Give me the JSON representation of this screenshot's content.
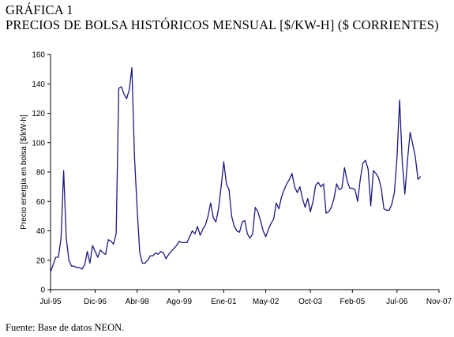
{
  "header": {
    "line1": "GRÁFICA 1",
    "line2": "PRECIOS DE BOLSA HISTÓRICOS MENSUAL [$/KW-H] ($ CORRIENTES)"
  },
  "footer": {
    "source": "Fuente: Base de datos NEON."
  },
  "colors": {
    "series": "#1a1a80",
    "axis": "#000000"
  },
  "chart_data": {
    "type": "line",
    "title": "PRECIOS DE BOLSA HISTÓRICOS MENSUAL [$/KW-H] ($ CORRIENTES)",
    "ylabel": "Precio energía en bolsa [$/kW-h]",
    "xlabel": "",
    "ylim": [
      0,
      160
    ],
    "yticks": [
      0,
      20,
      40,
      60,
      80,
      100,
      120,
      140,
      160
    ],
    "x_range": [
      "1995-07",
      "2007-11"
    ],
    "xticks": [
      {
        "label": "Jul-95",
        "date": "1995-07"
      },
      {
        "label": "Dic-96",
        "date": "1996-12"
      },
      {
        "label": "Abr-98",
        "date": "1998-04"
      },
      {
        "label": "Ago-99",
        "date": "1999-08"
      },
      {
        "label": "Ene-01",
        "date": "2001-01"
      },
      {
        "label": "May-02",
        "date": "2002-05"
      },
      {
        "label": "Oct-03",
        "date": "2003-10"
      },
      {
        "label": "Feb-05",
        "date": "2005-02"
      },
      {
        "label": "Jul-06",
        "date": "2006-07"
      },
      {
        "label": "Nov-07",
        "date": "2007-11"
      }
    ],
    "grid": false,
    "legend": "none",
    "series": [
      {
        "points": [
          [
            "1995-07",
            12
          ],
          [
            "1995-08",
            17
          ],
          [
            "1995-09",
            22
          ],
          [
            "1995-10",
            22
          ],
          [
            "1995-11",
            35
          ],
          [
            "1995-12",
            81
          ],
          [
            "1996-01",
            35
          ],
          [
            "1996-02",
            20
          ],
          [
            "1996-03",
            16
          ],
          [
            "1996-04",
            16
          ],
          [
            "1996-05",
            15
          ],
          [
            "1996-06",
            15
          ],
          [
            "1996-07",
            14
          ],
          [
            "1996-08",
            17
          ],
          [
            "1996-09",
            26
          ],
          [
            "1996-10",
            18
          ],
          [
            "1996-11",
            30
          ],
          [
            "1996-12",
            26
          ],
          [
            "1997-01",
            22
          ],
          [
            "1997-02",
            27
          ],
          [
            "1997-03",
            25
          ],
          [
            "1997-04",
            24
          ],
          [
            "1997-05",
            34
          ],
          [
            "1997-06",
            33
          ],
          [
            "1997-07",
            31
          ],
          [
            "1997-08",
            38
          ],
          [
            "1997-09",
            137
          ],
          [
            "1997-10",
            138
          ],
          [
            "1997-11",
            133
          ],
          [
            "1997-12",
            130
          ],
          [
            "1998-01",
            136
          ],
          [
            "1998-02",
            151
          ],
          [
            "1998-03",
            90
          ],
          [
            "1998-04",
            55
          ],
          [
            "1998-05",
            25
          ],
          [
            "1998-06",
            18
          ],
          [
            "1998-07",
            18
          ],
          [
            "1998-08",
            20
          ],
          [
            "1998-09",
            23
          ],
          [
            "1998-10",
            23
          ],
          [
            "1998-11",
            25
          ],
          [
            "1998-12",
            24
          ],
          [
            "1999-01",
            26
          ],
          [
            "1999-02",
            25
          ],
          [
            "1999-03",
            21
          ],
          [
            "1999-04",
            24
          ],
          [
            "1999-05",
            26
          ],
          [
            "1999-06",
            28
          ],
          [
            "1999-07",
            30
          ],
          [
            "1999-08",
            33
          ],
          [
            "1999-09",
            32
          ],
          [
            "1999-10",
            32
          ],
          [
            "1999-11",
            32
          ],
          [
            "1999-12",
            36
          ],
          [
            "2000-01",
            40
          ],
          [
            "2000-02",
            38
          ],
          [
            "2000-03",
            43
          ],
          [
            "2000-04",
            37
          ],
          [
            "2000-05",
            41
          ],
          [
            "2000-06",
            44
          ],
          [
            "2000-07",
            50
          ],
          [
            "2000-08",
            59
          ],
          [
            "2000-09",
            49
          ],
          [
            "2000-10",
            46
          ],
          [
            "2000-11",
            55
          ],
          [
            "2000-12",
            70
          ],
          [
            "2001-01",
            87
          ],
          [
            "2001-02",
            72
          ],
          [
            "2001-03",
            68
          ],
          [
            "2001-04",
            50
          ],
          [
            "2001-05",
            43
          ],
          [
            "2001-06",
            40
          ],
          [
            "2001-07",
            39
          ],
          [
            "2001-08",
            46
          ],
          [
            "2001-09",
            47
          ],
          [
            "2001-10",
            38
          ],
          [
            "2001-11",
            35
          ],
          [
            "2001-12",
            38
          ],
          [
            "2002-01",
            56
          ],
          [
            "2002-02",
            53
          ],
          [
            "2002-03",
            47
          ],
          [
            "2002-04",
            40
          ],
          [
            "2002-05",
            36
          ],
          [
            "2002-06",
            41
          ],
          [
            "2002-07",
            45
          ],
          [
            "2002-08",
            48
          ],
          [
            "2002-09",
            59
          ],
          [
            "2002-10",
            55
          ],
          [
            "2002-11",
            63
          ],
          [
            "2002-12",
            68
          ],
          [
            "2003-01",
            72
          ],
          [
            "2003-02",
            75
          ],
          [
            "2003-03",
            79
          ],
          [
            "2003-04",
            70
          ],
          [
            "2003-05",
            66
          ],
          [
            "2003-06",
            70
          ],
          [
            "2003-07",
            62
          ],
          [
            "2003-08",
            56
          ],
          [
            "2003-09",
            62
          ],
          [
            "2003-10",
            53
          ],
          [
            "2003-11",
            60
          ],
          [
            "2003-12",
            71
          ],
          [
            "2004-01",
            73
          ],
          [
            "2004-02",
            70
          ],
          [
            "2004-03",
            72
          ],
          [
            "2004-04",
            52
          ],
          [
            "2004-05",
            53
          ],
          [
            "2004-06",
            56
          ],
          [
            "2004-07",
            62
          ],
          [
            "2004-08",
            72
          ],
          [
            "2004-09",
            68
          ],
          [
            "2004-10",
            69
          ],
          [
            "2004-11",
            83
          ],
          [
            "2004-12",
            74
          ],
          [
            "2005-01",
            69
          ],
          [
            "2005-02",
            69
          ],
          [
            "2005-03",
            68
          ],
          [
            "2005-04",
            60
          ],
          [
            "2005-05",
            75
          ],
          [
            "2005-06",
            86
          ],
          [
            "2005-07",
            88
          ],
          [
            "2005-08",
            82
          ],
          [
            "2005-09",
            57
          ],
          [
            "2005-10",
            81
          ],
          [
            "2005-11",
            79
          ],
          [
            "2005-12",
            76
          ],
          [
            "2006-01",
            69
          ],
          [
            "2006-02",
            55
          ],
          [
            "2006-03",
            54
          ],
          [
            "2006-04",
            54
          ],
          [
            "2006-05",
            58
          ],
          [
            "2006-06",
            66
          ],
          [
            "2006-07",
            90
          ],
          [
            "2006-08",
            129
          ],
          [
            "2006-09",
            87
          ],
          [
            "2006-10",
            65
          ],
          [
            "2006-11",
            88
          ],
          [
            "2006-12",
            107
          ],
          [
            "2007-01",
            99
          ],
          [
            "2007-02",
            90
          ],
          [
            "2007-03",
            75
          ],
          [
            "2007-04",
            77
          ]
        ]
      }
    ]
  }
}
